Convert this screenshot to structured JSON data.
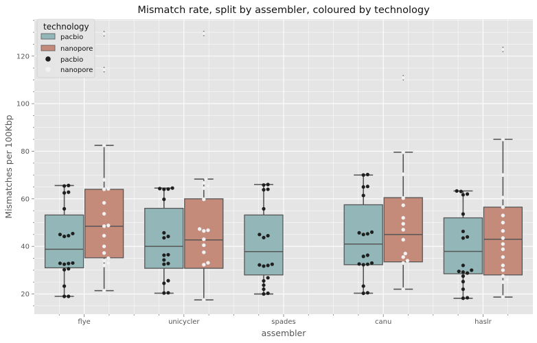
{
  "chart_data": {
    "type": "box",
    "title": "Mismatch rate, split by assembler, coloured by technology",
    "xlabel": "assembler",
    "ylabel": "Mismatches per 100Kbp",
    "categories": [
      "flye",
      "unicycler",
      "spades",
      "canu",
      "haslr"
    ],
    "ylim": [
      11.5,
      135.5
    ],
    "yticks": [
      20,
      40,
      60,
      80,
      100,
      120
    ],
    "grid": true,
    "legend": {
      "title": "technology",
      "placement": "top-left",
      "entries": [
        {
          "label": "pacbio",
          "kind": "box",
          "color": "#93b7b8"
        },
        {
          "label": "nanopore",
          "kind": "box",
          "color": "#c48b7b"
        },
        {
          "label": "pacbio",
          "kind": "point",
          "color": "#1f1f1f"
        },
        {
          "label": "nanopore",
          "kind": "point",
          "color": "#f2f2f2"
        }
      ]
    },
    "series": [
      {
        "name": "pacbio",
        "box_color": "#93b7b8",
        "point_color": "#1f1f1f",
        "boxes": [
          {
            "category": "flye",
            "whislo": 19,
            "q1": 31,
            "med": 38.8,
            "q3": 53.2,
            "whishi": 65.6,
            "fliers": []
          },
          {
            "category": "unicycler",
            "whislo": 20.3,
            "q1": 30.8,
            "med": 40,
            "q3": 56,
            "whishi": 64.5,
            "fliers": []
          },
          {
            "category": "spades",
            "whislo": 20,
            "q1": 28,
            "med": 37.8,
            "q3": 53.2,
            "whishi": 66,
            "fliers": []
          },
          {
            "category": "canu",
            "whislo": 20.3,
            "q1": 32.3,
            "med": 41,
            "q3": 57.5,
            "whishi": 70,
            "fliers": []
          },
          {
            "category": "haslr",
            "whislo": 18.2,
            "q1": 28.5,
            "med": 37.9,
            "q3": 52,
            "whishi": 63.3,
            "fliers": []
          }
        ],
        "points": [
          {
            "category": "flye",
            "values": [
              19,
              19,
              23.3,
              30.2,
              30.6,
              32.5,
              32.8,
              32.9,
              33,
              44.2,
              44.5,
              45,
              45.4,
              55.8,
              62.5,
              62.8,
              65.4,
              65.6
            ]
          },
          {
            "category": "unicycler",
            "values": [
              20.4,
              20.5,
              24.5,
              25.6,
              32.5,
              32.8,
              34.3,
              36.3,
              36.5,
              43.6,
              44.2,
              45.7,
              59.8,
              64,
              64.1,
              64.3,
              64.5
            ]
          },
          {
            "category": "spades",
            "values": [
              20,
              20.3,
              22,
              23.7,
              25.5,
              26.8,
              31.7,
              32,
              32.2,
              32.5,
              43.7,
              44.5,
              45,
              55.8,
              63.8,
              64,
              65.8,
              66
            ]
          },
          {
            "category": "canu",
            "values": [
              20.3,
              20.5,
              23.3,
              32.3,
              32.5,
              32.6,
              33,
              35.8,
              36.3,
              45,
              45.3,
              45.7,
              46,
              61.4,
              65,
              65.2,
              70,
              70.2
            ]
          },
          {
            "category": "haslr",
            "values": [
              18.2,
              18.4,
              22,
              25.2,
              27.5,
              28.8,
              29.2,
              29.5,
              30,
              32,
              43.5,
              44,
              46.3,
              53.6,
              61.7,
              62,
              63.1,
              63.3
            ]
          }
        ]
      },
      {
        "name": "nanopore",
        "box_color": "#c48b7b",
        "point_color": "#f2f2f2",
        "boxes": [
          {
            "category": "flye",
            "whislo": 21.4,
            "q1": 35.2,
            "med": 48.5,
            "q3": 64,
            "whishi": 82.5,
            "fliers": [
              114.3,
              129.4
            ]
          },
          {
            "category": "unicycler",
            "whislo": 17.5,
            "q1": 30.8,
            "med": 42.7,
            "q3": 60,
            "whishi": 68.3,
            "fliers": [
              129.5
            ]
          },
          {
            "category": "canu",
            "whislo": 22,
            "q1": 33.5,
            "med": 45,
            "q3": 60.5,
            "whishi": 79.6,
            "fliers": [
              110.9
            ]
          },
          {
            "category": "haslr",
            "whislo": 18.7,
            "q1": 28,
            "med": 43,
            "q3": 56.5,
            "whishi": 85,
            "fliers": [
              122.8
            ]
          }
        ],
        "points": [
          {
            "category": "flye",
            "values": [
              21.4,
              32,
              33,
              34,
              35,
              37.2,
              40,
              44.5,
              48.5,
              48.8,
              53.7,
              58.3,
              64,
              64.2,
              68,
              82.5,
              114.3,
              129.4
            ]
          },
          {
            "category": "unicycler",
            "values": [
              17.5,
              32.3,
              33.1,
              37.5,
              40.5,
              43,
              46.5,
              46.8,
              47.3,
              59.8,
              64.5,
              65.3,
              66.7,
              68.3,
              129.5
            ]
          },
          {
            "category": "canu",
            "values": [
              22,
              33,
              34,
              35.5,
              37,
              42.8,
              47,
              49.5,
              52,
              57.3,
              60.3,
              70.3,
              79.6,
              110.9
            ]
          },
          {
            "category": "haslr",
            "values": [
              18.7,
              25,
              26,
              27.5,
              30,
              32,
              35.5,
              38.8,
              41,
              43.5,
              46.5,
              50,
              53,
              56.5,
              60.5,
              70,
              85,
              122.8
            ]
          }
        ]
      }
    ]
  }
}
